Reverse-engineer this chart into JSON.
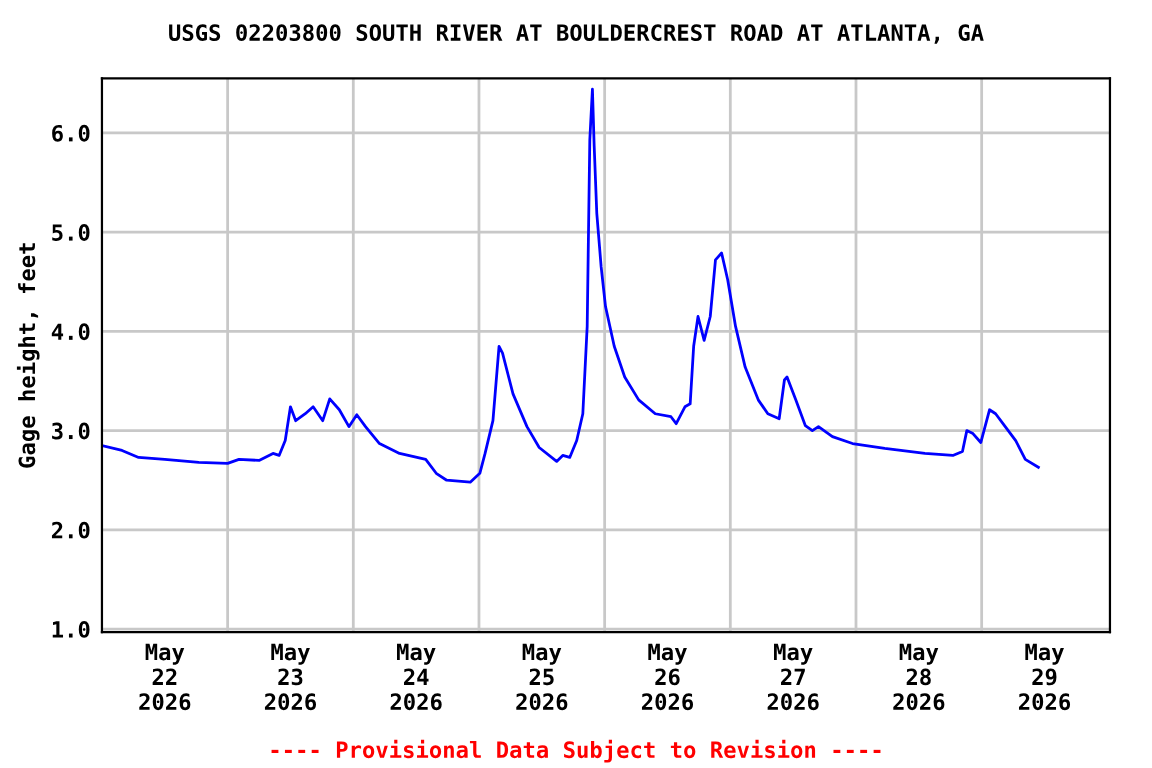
{
  "chart_data": {
    "type": "line",
    "title": "USGS 02203800 SOUTH RIVER AT BOULDERCREST ROAD AT ATLANTA, GA",
    "ylabel": "Gage height, feet",
    "annotations": [
      "---- Provisional Data Subject to Revision ----"
    ],
    "x": [
      "2026-05-22T00:00",
      "2026-05-22T03:50",
      "2026-05-22T07:00",
      "2026-05-22T12:00",
      "2026-05-22T18:30",
      "2026-05-23T00:00",
      "2026-05-23T02:10",
      "2026-05-23T06:00",
      "2026-05-23T08:40",
      "2026-05-23T09:50",
      "2026-05-23T11:00",
      "2026-05-23T12:00",
      "2026-05-23T13:00",
      "2026-05-23T14:50",
      "2026-05-23T16:20",
      "2026-05-23T18:10",
      "2026-05-23T19:30",
      "2026-05-23T21:20",
      "2026-05-23T23:10",
      "2026-05-24T00:40",
      "2026-05-24T02:20",
      "2026-05-24T05:00",
      "2026-05-24T08:50",
      "2026-05-24T13:50",
      "2026-05-24T15:50",
      "2026-05-24T17:50",
      "2026-05-24T22:20",
      "2026-05-25T00:10",
      "2026-05-25T01:10",
      "2026-05-25T02:40",
      "2026-05-25T03:50",
      "2026-05-25T04:30",
      "2026-05-25T06:30",
      "2026-05-25T09:10",
      "2026-05-25T11:30",
      "2026-05-25T14:50",
      "2026-05-25T16:00",
      "2026-05-25T17:20",
      "2026-05-25T18:40",
      "2026-05-25T19:50",
      "2026-05-25T20:40",
      "2026-05-25T21:10",
      "2026-05-25T21:40",
      "2026-05-25T22:00",
      "2026-05-25T22:30",
      "2026-05-25T23:20",
      "2026-05-26T00:10",
      "2026-05-26T01:50",
      "2026-05-26T03:50",
      "2026-05-26T06:30",
      "2026-05-26T09:40",
      "2026-05-26T12:40",
      "2026-05-26T13:40",
      "2026-05-26T15:20",
      "2026-05-26T16:20",
      "2026-05-26T17:00",
      "2026-05-26T17:50",
      "2026-05-26T19:00",
      "2026-05-26T20:10",
      "2026-05-26T21:10",
      "2026-05-26T22:20",
      "2026-05-26T23:30",
      "2026-05-27T01:00",
      "2026-05-27T02:50",
      "2026-05-27T05:20",
      "2026-05-27T07:10",
      "2026-05-27T09:20",
      "2026-05-27T10:20",
      "2026-05-27T10:50",
      "2026-05-27T12:30",
      "2026-05-27T14:20",
      "2026-05-27T15:40",
      "2026-05-27T16:50",
      "2026-05-27T19:30",
      "2026-05-27T23:20",
      "2026-05-28T05:30",
      "2026-05-28T13:10",
      "2026-05-28T18:30",
      "2026-05-28T20:20",
      "2026-05-28T21:10",
      "2026-05-28T22:20",
      "2026-05-28T23:50",
      "2026-05-29T01:30",
      "2026-05-29T02:40",
      "2026-05-29T04:30",
      "2026-05-29T06:30",
      "2026-05-29T08:20",
      "2026-05-29T10:50"
    ],
    "series": [
      {
        "color": "#0000ff",
        "values": [
          2.85,
          2.8,
          2.73,
          2.71,
          2.68,
          2.67,
          2.71,
          2.7,
          2.77,
          2.75,
          2.9,
          3.24,
          3.1,
          3.17,
          3.24,
          3.1,
          3.32,
          3.21,
          3.04,
          3.16,
          3.04,
          2.87,
          2.77,
          2.71,
          2.57,
          2.5,
          2.48,
          2.57,
          2.77,
          3.1,
          3.85,
          3.78,
          3.37,
          3.04,
          2.83,
          2.69,
          2.75,
          2.73,
          2.9,
          3.17,
          4.05,
          5.93,
          6.44,
          5.87,
          5.19,
          4.65,
          4.25,
          3.85,
          3.54,
          3.31,
          3.17,
          3.14,
          3.07,
          3.24,
          3.27,
          3.85,
          4.15,
          3.91,
          4.15,
          4.72,
          4.79,
          4.52,
          4.05,
          3.64,
          3.31,
          3.17,
          3.12,
          3.51,
          3.54,
          3.31,
          3.05,
          3.0,
          3.04,
          2.94,
          2.87,
          2.82,
          2.77,
          2.75,
          2.79,
          3.0,
          2.97,
          2.88,
          3.21,
          3.17,
          3.04,
          2.9,
          2.71,
          2.63
        ]
      }
    ],
    "xlim": [
      "2026-05-22T00:00",
      "2026-05-30T00:30"
    ],
    "xticks": [
      {
        "value": "2026-05-22T12:00",
        "label": "May\n22\n2026"
      },
      {
        "value": "2026-05-23T00:00",
        "label": null
      },
      {
        "value": "2026-05-23T12:00",
        "label": "May\n23\n2026"
      },
      {
        "value": "2026-05-24T00:00",
        "label": null
      },
      {
        "value": "2026-05-24T12:00",
        "label": "May\n24\n2026"
      },
      {
        "value": "2026-05-25T00:00",
        "label": null
      },
      {
        "value": "2026-05-25T12:00",
        "label": "May\n25\n2026"
      },
      {
        "value": "2026-05-26T00:00",
        "label": null
      },
      {
        "value": "2026-05-26T12:00",
        "label": "May\n26\n2026"
      },
      {
        "value": "2026-05-27T00:00",
        "label": null
      },
      {
        "value": "2026-05-27T12:00",
        "label": "May\n27\n2026"
      },
      {
        "value": "2026-05-28T00:00",
        "label": null
      },
      {
        "value": "2026-05-28T12:00",
        "label": "May\n28\n2026"
      },
      {
        "value": "2026-05-29T00:00",
        "label": null
      },
      {
        "value": "2026-05-29T12:00",
        "label": "May\n29\n2026"
      }
    ],
    "ylim": [
      0.97,
      6.55
    ],
    "yticks": [
      {
        "value": 1,
        "label": "1.0"
      },
      {
        "value": 2,
        "label": "2.0"
      },
      {
        "value": 3,
        "label": "3.0"
      },
      {
        "value": 4,
        "label": "4.0"
      },
      {
        "value": 5,
        "label": "5.0"
      },
      {
        "value": 6,
        "label": "6.0"
      }
    ],
    "grid": true
  }
}
